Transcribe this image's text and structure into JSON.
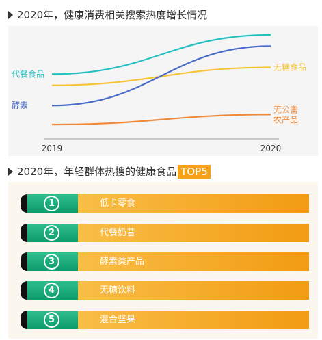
{
  "section1": {
    "title": "2020年，健康消费相关搜索热度增长情况"
  },
  "chart_data": {
    "type": "line",
    "title": "2020年，健康消费相关搜索热度增长情况",
    "xlabel": "",
    "ylabel": "",
    "x_ticks": [
      "2019",
      "2020"
    ],
    "ylim": [
      0,
      100
    ],
    "grid": false,
    "legend": "inline-labels",
    "series": [
      {
        "name": "代餐食品",
        "color": "#26c0c3",
        "label_side": "left",
        "values": [
          62,
          97
        ]
      },
      {
        "name": "无糖食品",
        "color": "#f6c437",
        "label_side": "right",
        "values": [
          52,
          68
        ]
      },
      {
        "name": "酵素",
        "color": "#4a6cc7",
        "label_side": "left",
        "values": [
          34,
          87
        ]
      },
      {
        "name": "无公害农产品",
        "color": "#f08a3a",
        "label_side": "right",
        "label_lines": [
          "无公害",
          "农产品"
        ],
        "values": [
          17,
          26
        ]
      }
    ]
  },
  "section2": {
    "title": "2020年，年轻群体热搜的健康食品",
    "badge": "TOP5",
    "items": [
      {
        "rank": "1",
        "label": "低卡零食"
      },
      {
        "rank": "2",
        "label": "代餐奶昔"
      },
      {
        "rank": "3",
        "label": "酵素类产品"
      },
      {
        "rank": "4",
        "label": "无糖饮料"
      },
      {
        "rank": "5",
        "label": "混合坚果"
      }
    ]
  }
}
